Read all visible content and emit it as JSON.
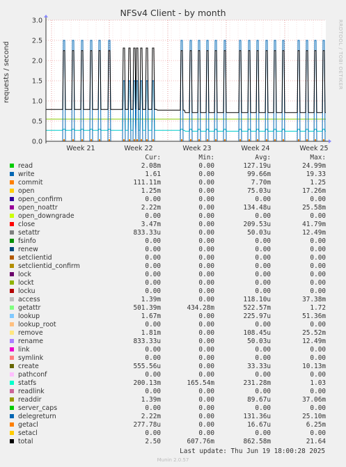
{
  "title": "NFSv4 Client - by month",
  "watermark": "RRDTOOL / TOBI OETIKER",
  "version": "Munin 2.0.57",
  "last_update": "Last update: Thu Jun 19 18:00:28 2025",
  "columns": {
    "cur": "Cur:",
    "min": "Min:",
    "avg": "Avg:",
    "max": "Max:"
  },
  "chart_data": {
    "type": "line",
    "ylabel": "requests / second",
    "ylim": [
      0,
      3.0
    ],
    "yticks": [
      "0.0",
      "0.5",
      "1.0",
      "1.5",
      "2.0",
      "2.5",
      "3.0"
    ],
    "xticks": [
      "Week 21",
      "Week 22",
      "Week 23",
      "Week 24",
      "Week 25"
    ],
    "grid": true,
    "series": [
      {
        "name": "total",
        "color": "#000000",
        "baseline": 0.79,
        "level2": 0.71,
        "spike": 2.2
      },
      {
        "name": "getattr",
        "color": "#00cccc",
        "baseline": 0.27,
        "level2": 0.25,
        "spike": 1.5
      },
      {
        "name": "create",
        "color": "#88cc00",
        "baseline": 0.55,
        "level2": 0.55,
        "spike": 0.55
      },
      {
        "name": "write",
        "color": "#0066b3",
        "baseline": 0.0,
        "level2": 0.0,
        "spike": 2.5
      }
    ]
  },
  "legend": [
    {
      "name": "read",
      "color": "#00cc00",
      "cur": "2.08m",
      "min": "0.00",
      "avg": "127.19u",
      "max": "24.99m"
    },
    {
      "name": "write",
      "color": "#0066b3",
      "cur": "1.61",
      "min": "0.00",
      "avg": "99.66m",
      "max": "19.33"
    },
    {
      "name": "commit",
      "color": "#ff8000",
      "cur": "111.11m",
      "min": "0.00",
      "avg": "7.70m",
      "max": "1.25"
    },
    {
      "name": "open",
      "color": "#ffcc00",
      "cur": "1.25m",
      "min": "0.00",
      "avg": "75.03u",
      "max": "17.26m"
    },
    {
      "name": "open_confirm",
      "color": "#330099",
      "cur": "0.00",
      "min": "0.00",
      "avg": "0.00",
      "max": "0.00"
    },
    {
      "name": "open_noattr",
      "color": "#990099",
      "cur": "2.22m",
      "min": "0.00",
      "avg": "134.48u",
      "max": "25.58m"
    },
    {
      "name": "open_downgrade",
      "color": "#ccff00",
      "cur": "0.00",
      "min": "0.00",
      "avg": "0.00",
      "max": "0.00"
    },
    {
      "name": "close",
      "color": "#ff0000",
      "cur": "3.47m",
      "min": "0.00",
      "avg": "209.53u",
      "max": "41.79m"
    },
    {
      "name": "setattr",
      "color": "#808080",
      "cur": "833.33u",
      "min": "0.00",
      "avg": "50.03u",
      "max": "12.49m"
    },
    {
      "name": "fsinfo",
      "color": "#008f00",
      "cur": "0.00",
      "min": "0.00",
      "avg": "0.00",
      "max": "0.00"
    },
    {
      "name": "renew",
      "color": "#00487d",
      "cur": "0.00",
      "min": "0.00",
      "avg": "0.00",
      "max": "0.00"
    },
    {
      "name": "setclientid",
      "color": "#b35a00",
      "cur": "0.00",
      "min": "0.00",
      "avg": "0.00",
      "max": "0.00"
    },
    {
      "name": "setclientid_confirm",
      "color": "#b38f00",
      "cur": "0.00",
      "min": "0.00",
      "avg": "0.00",
      "max": "0.00"
    },
    {
      "name": "lock",
      "color": "#6b006b",
      "cur": "0.00",
      "min": "0.00",
      "avg": "0.00",
      "max": "0.00"
    },
    {
      "name": "lockt",
      "color": "#8fb300",
      "cur": "0.00",
      "min": "0.00",
      "avg": "0.00",
      "max": "0.00"
    },
    {
      "name": "locku",
      "color": "#b30000",
      "cur": "0.00",
      "min": "0.00",
      "avg": "0.00",
      "max": "0.00"
    },
    {
      "name": "access",
      "color": "#bebebe",
      "cur": "1.39m",
      "min": "0.00",
      "avg": "118.10u",
      "max": "37.38m"
    },
    {
      "name": "getattr",
      "color": "#80ff80",
      "cur": "501.39m",
      "min": "434.28m",
      "avg": "522.57m",
      "max": "1.72"
    },
    {
      "name": "lookup",
      "color": "#80c9ff",
      "cur": "1.67m",
      "min": "0.00",
      "avg": "225.97u",
      "max": "51.36m"
    },
    {
      "name": "lookup_root",
      "color": "#ffc080",
      "cur": "0.00",
      "min": "0.00",
      "avg": "0.00",
      "max": "0.00"
    },
    {
      "name": "remove",
      "color": "#ffe680",
      "cur": "1.81m",
      "min": "0.00",
      "avg": "108.45u",
      "max": "25.52m"
    },
    {
      "name": "rename",
      "color": "#aa80ff",
      "cur": "833.33u",
      "min": "0.00",
      "avg": "50.03u",
      "max": "12.49m"
    },
    {
      "name": "link",
      "color": "#ee00cc",
      "cur": "0.00",
      "min": "0.00",
      "avg": "0.00",
      "max": "0.00"
    },
    {
      "name": "symlink",
      "color": "#ff8080",
      "cur": "0.00",
      "min": "0.00",
      "avg": "0.00",
      "max": "0.00"
    },
    {
      "name": "create",
      "color": "#666600",
      "cur": "555.56u",
      "min": "0.00",
      "avg": "33.33u",
      "max": "10.13m"
    },
    {
      "name": "pathconf",
      "color": "#ffbfff",
      "cur": "0.00",
      "min": "0.00",
      "avg": "0.00",
      "max": "0.00"
    },
    {
      "name": "statfs",
      "color": "#00ffcc",
      "cur": "200.13m",
      "min": "165.54m",
      "avg": "231.28m",
      "max": "1.03"
    },
    {
      "name": "readlink",
      "color": "#cc6699",
      "cur": "0.00",
      "min": "0.00",
      "avg": "0.00",
      "max": "0.00"
    },
    {
      "name": "readdir",
      "color": "#999900",
      "cur": "1.39m",
      "min": "0.00",
      "avg": "89.67u",
      "max": "37.06m"
    },
    {
      "name": "server_caps",
      "color": "#00cc00",
      "cur": "0.00",
      "min": "0.00",
      "avg": "0.00",
      "max": "0.00"
    },
    {
      "name": "delegreturn",
      "color": "#0066b3",
      "cur": "2.22m",
      "min": "0.00",
      "avg": "131.36u",
      "max": "25.10m"
    },
    {
      "name": "getacl",
      "color": "#ff8000",
      "cur": "277.78u",
      "min": "0.00",
      "avg": "16.67u",
      "max": "6.25m"
    },
    {
      "name": "setacl",
      "color": "#ffcc00",
      "cur": "0.00",
      "min": "0.00",
      "avg": "0.00",
      "max": "0.00"
    },
    {
      "name": "total",
      "color": "#000000",
      "cur": "2.50",
      "min": "607.76m",
      "avg": "862.58m",
      "max": "21.64"
    }
  ]
}
